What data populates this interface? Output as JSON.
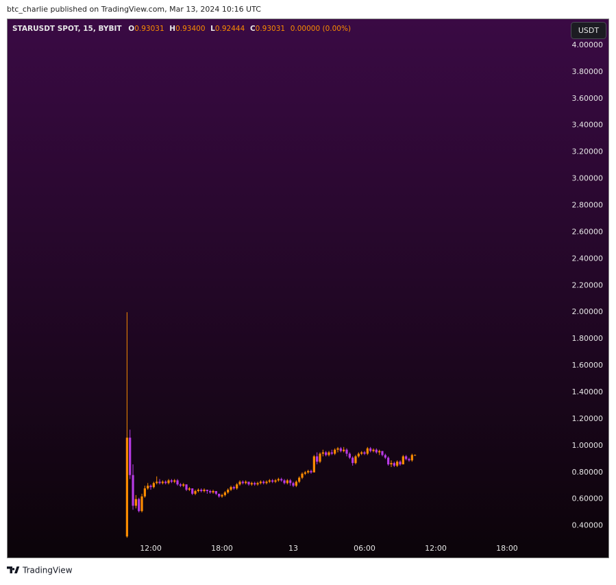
{
  "header": {
    "text": "btc_charlie published on TradingView.com, Mar 13, 2024 10:16 UTC"
  },
  "footer": {
    "brand": "TradingView"
  },
  "currency_button": "USDT",
  "legend": {
    "symbol": "STARUSDT SPOT, 15, BYBIT",
    "o_label": "O",
    "o_value": "0.93031",
    "h_label": "H",
    "h_value": "0.93400",
    "l_label": "L",
    "l_value": "0.92444",
    "c_label": "C",
    "c_value": "0.93031",
    "change": "0.00000 (0.00%)"
  },
  "chart_data": {
    "type": "candlestick",
    "up_color": "#fb8c00",
    "down_color": "#b83be6",
    "grid": false,
    "xlim": [
      -0.12,
      47.08
    ],
    "xticks": [
      {
        "value": 12,
        "label": "12:00"
      },
      {
        "value": 18,
        "label": "18:00"
      },
      {
        "value": 24,
        "label": "13"
      },
      {
        "value": 30,
        "label": "06:00"
      },
      {
        "value": 36,
        "label": "12:00"
      },
      {
        "value": 42,
        "label": "18:00"
      }
    ],
    "ylim": [
      0.28,
      4.2
    ],
    "yticks": [
      {
        "value": 4.0,
        "label": "4.00000"
      },
      {
        "value": 3.8,
        "label": "3.80000"
      },
      {
        "value": 3.6,
        "label": "3.60000"
      },
      {
        "value": 3.4,
        "label": "3.40000"
      },
      {
        "value": 3.2,
        "label": "3.20000"
      },
      {
        "value": 3.0,
        "label": "3.00000"
      },
      {
        "value": 2.8,
        "label": "2.80000"
      },
      {
        "value": 2.6,
        "label": "2.60000"
      },
      {
        "value": 2.4,
        "label": "2.40000"
      },
      {
        "value": 2.2,
        "label": "2.20000"
      },
      {
        "value": 2.0,
        "label": "2.00000"
      },
      {
        "value": 1.8,
        "label": "1.80000"
      },
      {
        "value": 1.6,
        "label": "1.60000"
      },
      {
        "value": 1.4,
        "label": "1.40000"
      },
      {
        "value": 1.2,
        "label": "1.20000"
      },
      {
        "value": 1.0,
        "label": "1.00000"
      },
      {
        "value": 0.8,
        "label": "0.80000"
      },
      {
        "value": 0.6,
        "label": "0.60000"
      },
      {
        "value": 0.4,
        "label": "0.40000"
      }
    ],
    "x": [
      10,
      10.25,
      10.5,
      10.75,
      11,
      11.25,
      11.5,
      11.75,
      12,
      12.25,
      12.5,
      12.75,
      13,
      13.25,
      13.5,
      13.75,
      14,
      14.25,
      14.5,
      14.75,
      15,
      15.25,
      15.5,
      15.75,
      16,
      16.25,
      16.5,
      16.75,
      17,
      17.25,
      17.5,
      17.75,
      18,
      18.25,
      18.5,
      18.75,
      19,
      19.25,
      19.5,
      19.75,
      20,
      20.25,
      20.5,
      20.75,
      21,
      21.25,
      21.5,
      21.75,
      22,
      22.25,
      22.5,
      22.75,
      23,
      23.25,
      23.5,
      23.75,
      24,
      24.25,
      24.5,
      24.75,
      25,
      25.25,
      25.5,
      25.75,
      26,
      26.25,
      26.5,
      26.75,
      27,
      27.25,
      27.5,
      27.75,
      28,
      28.25,
      28.5,
      28.75,
      29,
      29.25,
      29.5,
      29.75,
      30,
      30.25,
      30.5,
      30.75,
      31,
      31.25,
      31.5,
      31.75,
      32,
      32.25,
      32.5,
      32.75,
      33,
      33.25,
      33.5,
      33.75,
      34,
      34.25
    ],
    "open": [
      0.32,
      1.06,
      0.78,
      0.55,
      0.6,
      0.51,
      0.62,
      0.68,
      0.7,
      0.69,
      0.72,
      0.73,
      0.72,
      0.73,
      0.72,
      0.74,
      0.73,
      0.74,
      0.71,
      0.7,
      0.71,
      0.67,
      0.68,
      0.64,
      0.66,
      0.67,
      0.66,
      0.67,
      0.66,
      0.65,
      0.66,
      0.64,
      0.62,
      0.63,
      0.65,
      0.67,
      0.69,
      0.68,
      0.71,
      0.73,
      0.72,
      0.73,
      0.71,
      0.72,
      0.71,
      0.72,
      0.73,
      0.72,
      0.73,
      0.74,
      0.73,
      0.74,
      0.75,
      0.74,
      0.72,
      0.74,
      0.72,
      0.7,
      0.73,
      0.76,
      0.79,
      0.8,
      0.81,
      0.8,
      0.92,
      0.88,
      0.94,
      0.95,
      0.93,
      0.95,
      0.94,
      0.97,
      0.98,
      0.96,
      0.97,
      0.94,
      0.91,
      0.87,
      0.92,
      0.94,
      0.95,
      0.94,
      0.98,
      0.96,
      0.97,
      0.95,
      0.96,
      0.93,
      0.91,
      0.86,
      0.87,
      0.85,
      0.88,
      0.86,
      0.92,
      0.9,
      0.89,
      0.93031
    ],
    "high": [
      2.0,
      1.12,
      0.86,
      0.63,
      0.61,
      0.64,
      0.7,
      0.72,
      0.71,
      0.73,
      0.77,
      0.75,
      0.74,
      0.74,
      0.75,
      0.75,
      0.75,
      0.75,
      0.72,
      0.72,
      0.71,
      0.69,
      0.68,
      0.67,
      0.68,
      0.68,
      0.68,
      0.67,
      0.67,
      0.67,
      0.66,
      0.64,
      0.64,
      0.66,
      0.68,
      0.7,
      0.7,
      0.72,
      0.74,
      0.74,
      0.74,
      0.73,
      0.73,
      0.73,
      0.73,
      0.74,
      0.74,
      0.74,
      0.75,
      0.75,
      0.75,
      0.76,
      0.76,
      0.75,
      0.75,
      0.75,
      0.73,
      0.74,
      0.77,
      0.8,
      0.81,
      0.82,
      0.82,
      0.93,
      0.95,
      0.95,
      0.97,
      0.96,
      0.96,
      0.97,
      0.98,
      0.99,
      0.99,
      0.99,
      0.98,
      0.95,
      0.92,
      0.93,
      0.95,
      0.96,
      0.96,
      0.99,
      0.99,
      0.98,
      0.98,
      0.97,
      0.96,
      0.94,
      0.92,
      0.89,
      0.88,
      0.89,
      0.89,
      0.93,
      0.93,
      0.91,
      0.94,
      0.934
    ],
    "low": [
      0.31,
      0.75,
      0.52,
      0.53,
      0.5,
      0.5,
      0.61,
      0.67,
      0.67,
      0.68,
      0.71,
      0.71,
      0.71,
      0.71,
      0.71,
      0.72,
      0.72,
      0.7,
      0.69,
      0.69,
      0.66,
      0.66,
      0.63,
      0.63,
      0.65,
      0.65,
      0.65,
      0.64,
      0.64,
      0.64,
      0.63,
      0.61,
      0.61,
      0.62,
      0.64,
      0.66,
      0.67,
      0.67,
      0.7,
      0.71,
      0.71,
      0.7,
      0.7,
      0.7,
      0.7,
      0.71,
      0.71,
      0.71,
      0.72,
      0.72,
      0.72,
      0.73,
      0.73,
      0.71,
      0.71,
      0.7,
      0.69,
      0.69,
      0.72,
      0.75,
      0.78,
      0.79,
      0.79,
      0.8,
      0.86,
      0.87,
      0.92,
      0.92,
      0.92,
      0.93,
      0.93,
      0.95,
      0.95,
      0.95,
      0.92,
      0.9,
      0.85,
      0.86,
      0.91,
      0.93,
      0.93,
      0.93,
      0.95,
      0.95,
      0.94,
      0.93,
      0.92,
      0.9,
      0.85,
      0.84,
      0.84,
      0.84,
      0.85,
      0.86,
      0.89,
      0.88,
      0.88,
      0.92444
    ],
    "close": [
      1.06,
      0.78,
      0.55,
      0.6,
      0.51,
      0.62,
      0.68,
      0.7,
      0.69,
      0.72,
      0.73,
      0.72,
      0.73,
      0.72,
      0.74,
      0.73,
      0.74,
      0.71,
      0.7,
      0.71,
      0.67,
      0.68,
      0.64,
      0.66,
      0.67,
      0.66,
      0.67,
      0.66,
      0.65,
      0.66,
      0.64,
      0.62,
      0.63,
      0.65,
      0.67,
      0.69,
      0.68,
      0.71,
      0.73,
      0.72,
      0.73,
      0.71,
      0.72,
      0.71,
      0.72,
      0.73,
      0.72,
      0.73,
      0.74,
      0.73,
      0.74,
      0.75,
      0.74,
      0.72,
      0.74,
      0.72,
      0.7,
      0.73,
      0.76,
      0.79,
      0.8,
      0.81,
      0.8,
      0.92,
      0.88,
      0.94,
      0.95,
      0.93,
      0.95,
      0.94,
      0.97,
      0.98,
      0.96,
      0.97,
      0.94,
      0.91,
      0.87,
      0.92,
      0.94,
      0.95,
      0.94,
      0.98,
      0.96,
      0.97,
      0.95,
      0.96,
      0.93,
      0.91,
      0.86,
      0.87,
      0.85,
      0.88,
      0.86,
      0.92,
      0.9,
      0.89,
      0.93031,
      0.93031
    ]
  }
}
